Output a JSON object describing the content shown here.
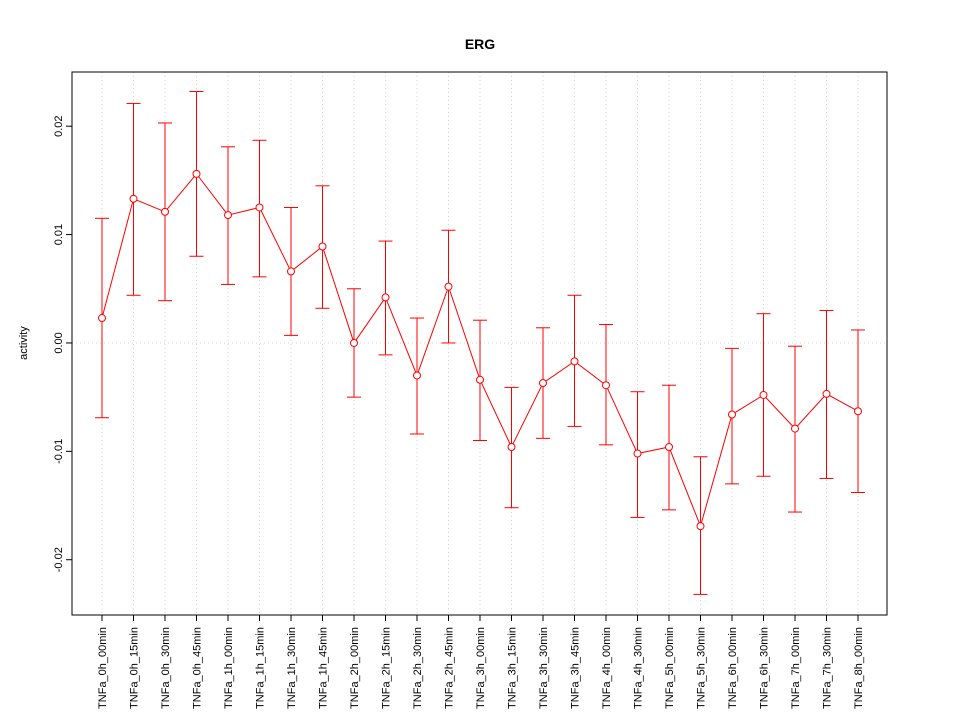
{
  "chart_data": {
    "type": "line",
    "title": "ERG",
    "xlabel": "",
    "ylabel": "activity",
    "ylim": [
      -0.0251,
      0.025
    ],
    "yticks": [
      -0.02,
      -0.01,
      0.0,
      0.01,
      0.02
    ],
    "ytick_labels": [
      "-0.02",
      "-0.01",
      "0.00",
      "0.01",
      "0.02"
    ],
    "grid": "dotted vertical at each category, horizontal at 0",
    "series_color": "#ff0000",
    "categories": [
      "TNFa_0h_00min",
      "TNFa_0h_15min",
      "TNFa_0h_30min",
      "TNFa_0h_45min",
      "TNFa_1h_00min",
      "TNFa_1h_15min",
      "TNFa_1h_30min",
      "TNFa_1h_45min",
      "TNFa_2h_00min",
      "TNFa_2h_15min",
      "TNFa_2h_30min",
      "TNFa_2h_45min",
      "TNFa_3h_00min",
      "TNFa_3h_15min",
      "TNFa_3h_30min",
      "TNFa_3h_45min",
      "TNFa_4h_00min",
      "TNFa_4h_30min",
      "TNFa_5h_00min",
      "TNFa_5h_30min",
      "TNFa_6h_00min",
      "TNFa_6h_30min",
      "TNFa_7h_00min",
      "TNFa_7h_30min",
      "TNFa_8h_00min"
    ],
    "values": [
      0.0023,
      0.0133,
      0.0121,
      0.0156,
      0.0118,
      0.0125,
      0.0066,
      0.0089,
      0.0,
      0.0042,
      -0.003,
      0.0052,
      -0.0034,
      -0.0096,
      -0.0037,
      -0.0017,
      -0.0039,
      -0.0102,
      -0.0096,
      -0.0169,
      -0.0066,
      -0.0048,
      -0.0079,
      -0.0047,
      -0.0063
    ],
    "upper": [
      0.0115,
      0.0221,
      0.0203,
      0.0232,
      0.0181,
      0.0187,
      0.0125,
      0.0145,
      0.005,
      0.0094,
      0.0023,
      0.0104,
      0.0021,
      -0.0041,
      0.0014,
      0.0044,
      0.0017,
      -0.0045,
      -0.0039,
      -0.0105,
      -0.0005,
      0.0027,
      -0.0003,
      0.003,
      0.0012
    ],
    "lower": [
      -0.0069,
      0.0044,
      0.0039,
      0.008,
      0.0054,
      0.0061,
      0.0007,
      0.0032,
      -0.005,
      -0.0011,
      -0.0084,
      0.0,
      -0.009,
      -0.0152,
      -0.0088,
      -0.0077,
      -0.0094,
      -0.0161,
      -0.0154,
      -0.0232,
      -0.013,
      -0.0123,
      -0.0156,
      -0.0125,
      -0.0138
    ]
  }
}
